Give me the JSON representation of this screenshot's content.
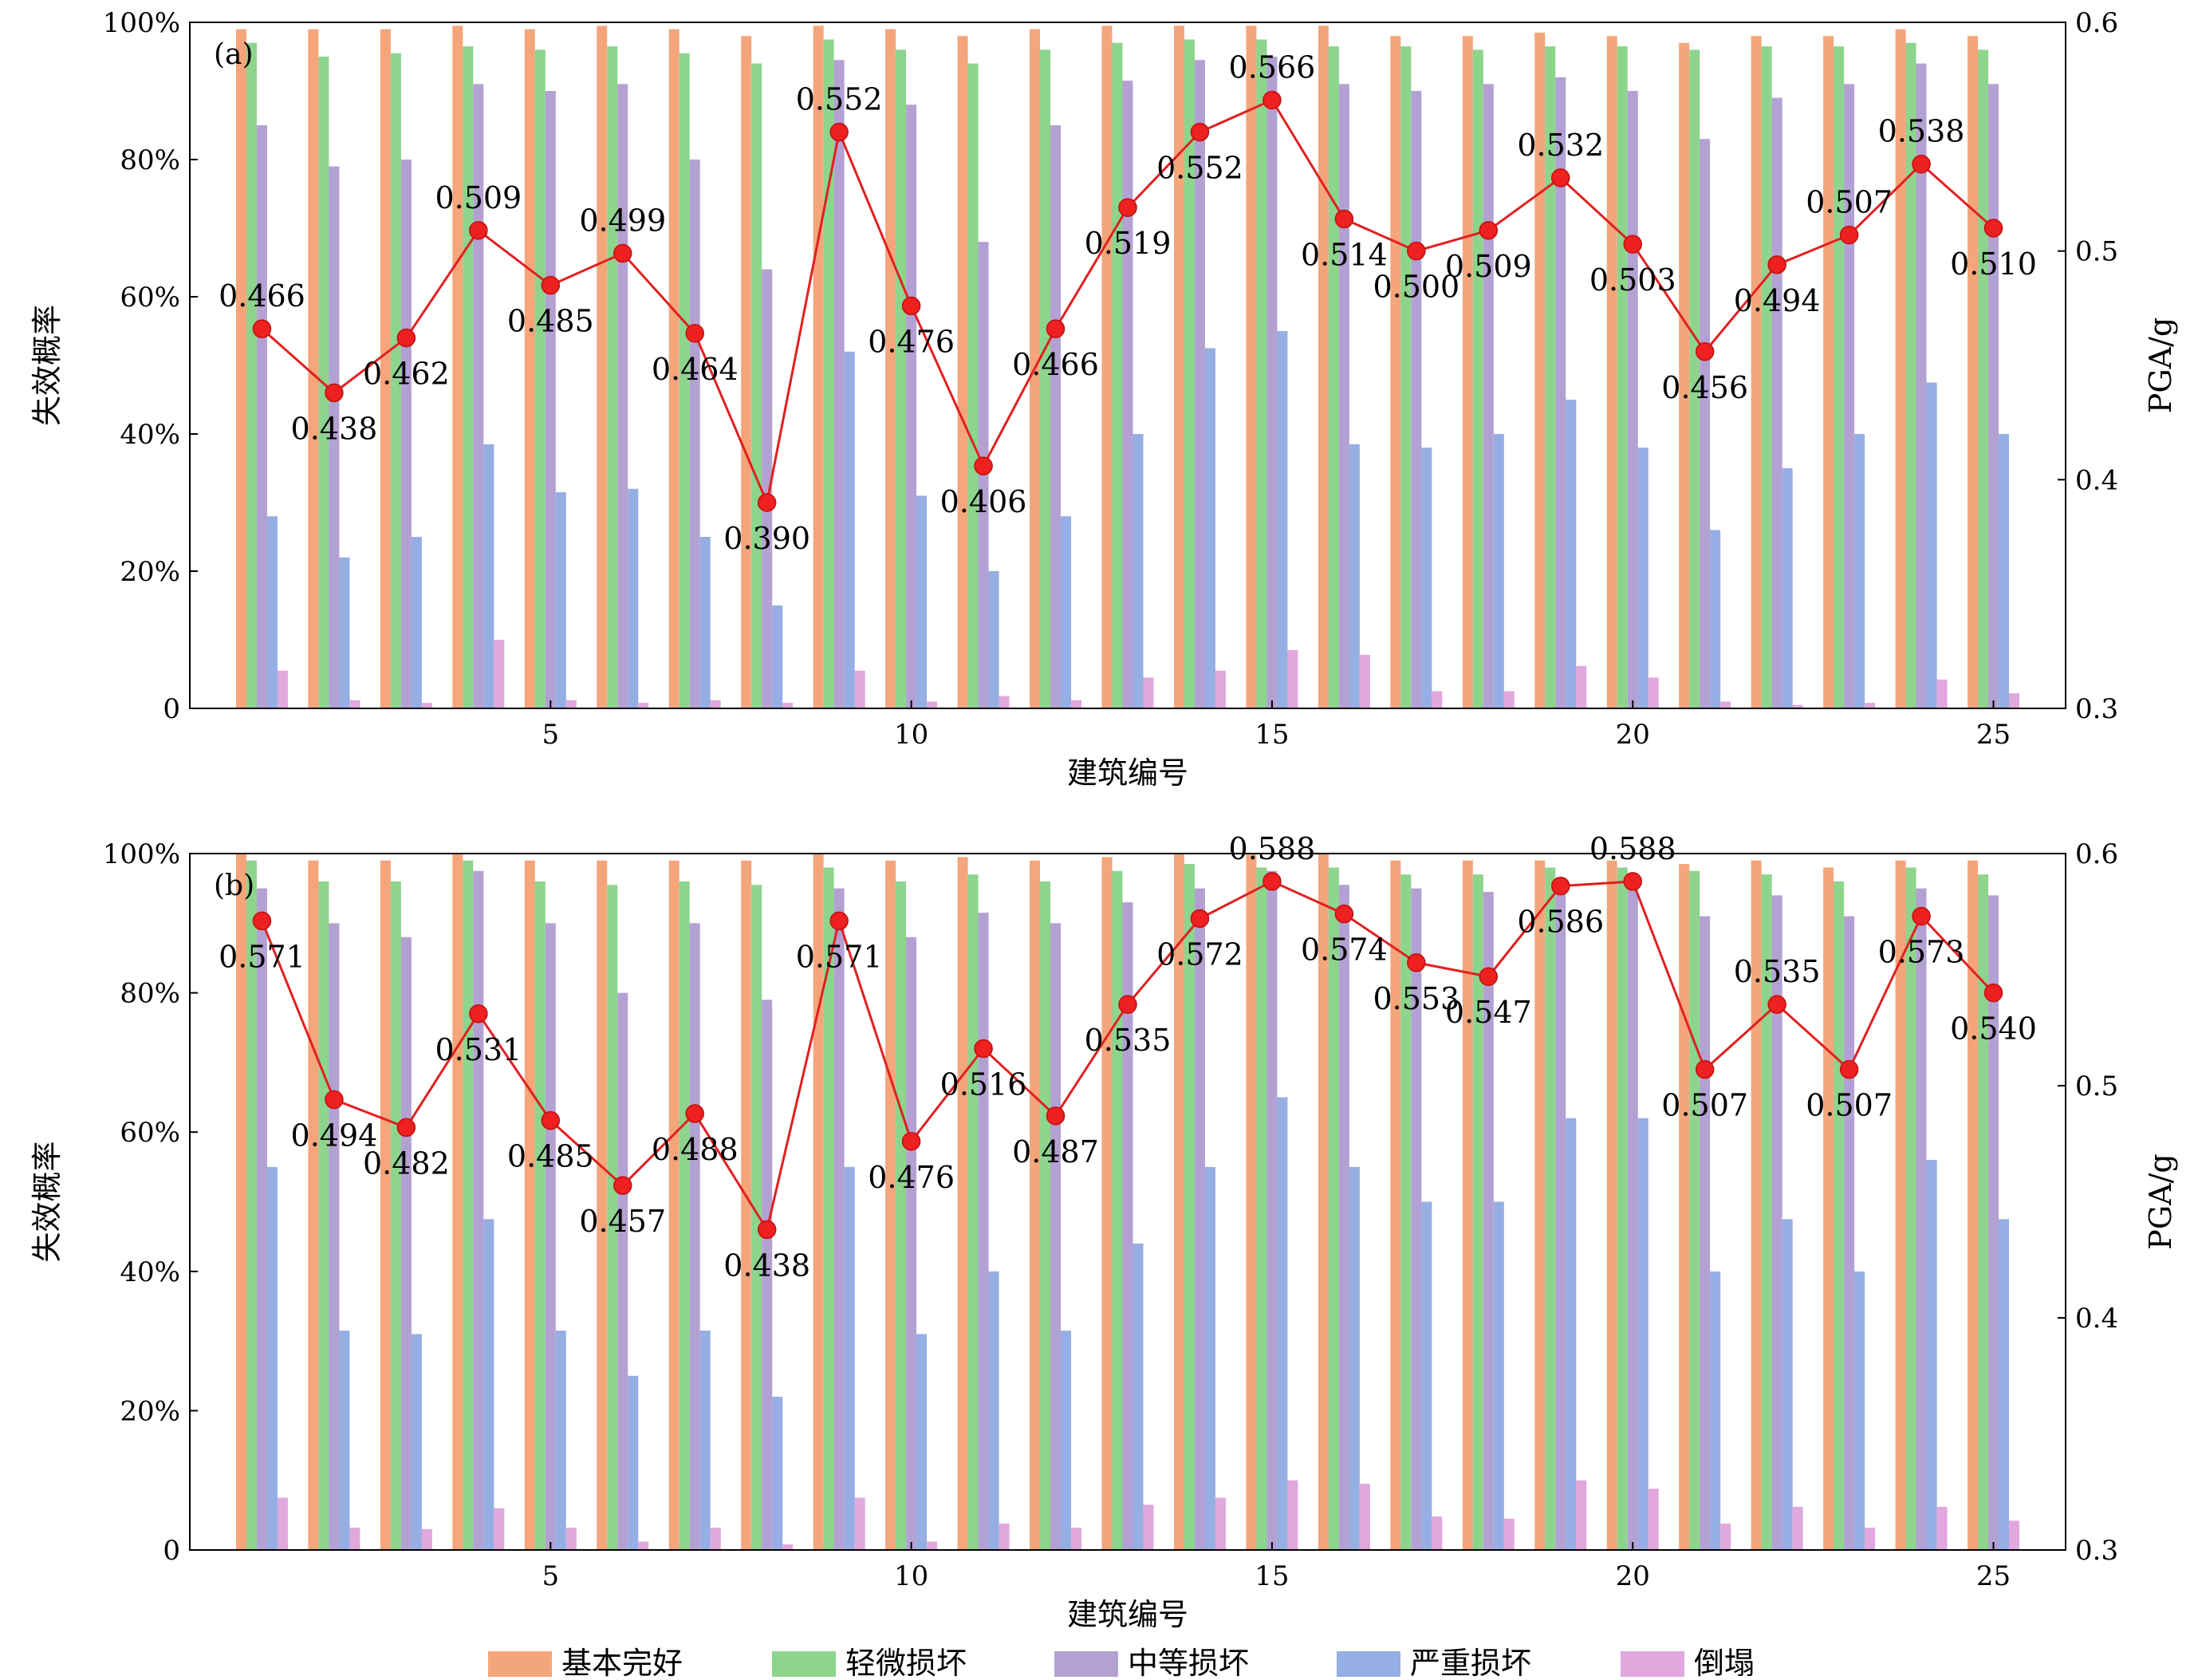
{
  "legend": {
    "position": "bottom-center",
    "items": [
      "基本完好",
      "轻微损坏",
      "中等损坏",
      "严重损坏",
      "倒塌"
    ]
  },
  "colors": {
    "基本完好": "#F4A57A",
    "轻微损坏": "#8DD48D",
    "中等损坏": "#B3A1D3",
    "严重损坏": "#95AEE3",
    "倒塌": "#E1A8DD",
    "pga_line": "#E02020",
    "pga_marker": "#EE2020"
  },
  "chart_data": [
    {
      "type": "bar",
      "panel_label": "(a)",
      "xlabel": "建筑编号",
      "ylabel": "失效概率",
      "y2label": "PGA/g",
      "ylim": [
        0,
        100
      ],
      "y2lim": [
        0.3,
        0.6
      ],
      "xlim": [
        0,
        26
      ],
      "yticks": [
        "0",
        "20%",
        "40%",
        "60%",
        "80%",
        "100%"
      ],
      "y2ticks": [
        "0.3",
        "0.4",
        "0.5",
        "0.6"
      ],
      "xticks": [
        "5",
        "10",
        "15",
        "20",
        "25"
      ],
      "x": [
        1,
        2,
        3,
        4,
        5,
        6,
        7,
        8,
        9,
        10,
        11,
        12,
        13,
        14,
        15,
        16,
        17,
        18,
        19,
        20,
        21,
        22,
        23,
        24,
        25
      ],
      "series": [
        {
          "name": "基本完好",
          "values": [
            99,
            99,
            99,
            99.5,
            99,
            99.5,
            99,
            98,
            99.5,
            99,
            98,
            99,
            99.5,
            99.5,
            99.5,
            99.5,
            98,
            98,
            98.5,
            98,
            97,
            98,
            98,
            99,
            98
          ]
        },
        {
          "name": "轻微损坏",
          "values": [
            97,
            95,
            95.5,
            96.5,
            96,
            96.5,
            95.5,
            94,
            97.5,
            96,
            94,
            96,
            97,
            97.5,
            97.5,
            96.5,
            96.5,
            96,
            96.5,
            96.5,
            96,
            96.5,
            96.5,
            97,
            96
          ]
        },
        {
          "name": "中等损坏",
          "values": [
            85,
            79,
            80,
            91,
            90,
            91,
            80,
            64,
            94.5,
            88,
            68,
            85,
            91.5,
            94.5,
            95,
            91,
            90,
            91,
            92,
            90,
            83,
            89,
            91,
            94,
            91
          ]
        },
        {
          "name": "严重损坏",
          "values": [
            28,
            22,
            25,
            38.5,
            31.5,
            32,
            25,
            15,
            52,
            31,
            20,
            28,
            40,
            52.5,
            55,
            38.5,
            38,
            40,
            45,
            38,
            26,
            35,
            40,
            47.5,
            40
          ]
        },
        {
          "name": "倒塌",
          "values": [
            5.5,
            1.2,
            0.8,
            10,
            1.2,
            0.8,
            1.2,
            0.8,
            5.5,
            1,
            1.8,
            1.2,
            4.5,
            5.5,
            8.5,
            7.8,
            2.5,
            2.5,
            6.2,
            4.5,
            1,
            0.5,
            0.8,
            4.2,
            2.2
          ]
        },
        {
          "name": "PGA",
          "axis": "right",
          "type": "line",
          "values": [
            0.466,
            0.438,
            0.462,
            0.509,
            0.485,
            0.499,
            0.464,
            0.39,
            0.552,
            0.476,
            0.406,
            0.466,
            0.519,
            0.552,
            0.566,
            0.514,
            0.5,
            0.509,
            0.532,
            0.503,
            0.456,
            0.494,
            0.507,
            0.538,
            0.51
          ],
          "labels": [
            "0.466",
            "0.438",
            "0.462",
            "0.509",
            "0.485",
            "0.499",
            "0.464",
            "0.390",
            "0.552",
            "0.476",
            "0.406",
            "0.466",
            "0.519",
            "0.552",
            "0.566",
            "0.514",
            "0.500",
            "0.509",
            "0.532",
            "0.503",
            "0.456",
            "0.494",
            "0.507",
            "0.538",
            "0.510"
          ],
          "label_side": [
            "above",
            "below",
            "below",
            "above",
            "below",
            "above",
            "below",
            "below",
            "above",
            "below",
            "below",
            "below",
            "below",
            "below",
            "above",
            "below",
            "below",
            "below",
            "above",
            "below",
            "below",
            "below",
            "above",
            "above",
            "below"
          ]
        }
      ]
    },
    {
      "type": "bar",
      "panel_label": "(b)",
      "xlabel": "建筑编号",
      "ylabel": "失效概率",
      "y2label": "PGA/g",
      "ylim": [
        0,
        100
      ],
      "y2lim": [
        0.3,
        0.6
      ],
      "xlim": [
        0,
        26
      ],
      "yticks": [
        "0",
        "20%",
        "40%",
        "60%",
        "80%",
        "100%"
      ],
      "y2ticks": [
        "0.3",
        "0.4",
        "0.5",
        "0.6"
      ],
      "xticks": [
        "5",
        "10",
        "15",
        "20",
        "25"
      ],
      "x": [
        1,
        2,
        3,
        4,
        5,
        6,
        7,
        8,
        9,
        10,
        11,
        12,
        13,
        14,
        15,
        16,
        17,
        18,
        19,
        20,
        21,
        22,
        23,
        24,
        25
      ],
      "series": [
        {
          "name": "基本完好",
          "values": [
            100,
            99,
            99,
            100,
            99,
            99,
            99,
            99,
            100,
            99,
            99.5,
            99,
            99.5,
            100,
            100,
            100,
            99,
            99,
            99,
            99,
            98.5,
            99,
            98,
            99,
            99
          ]
        },
        {
          "name": "轻微损坏",
          "values": [
            99,
            96,
            96,
            99,
            96,
            95.5,
            96,
            95.5,
            98,
            96,
            97,
            96,
            97.5,
            98.5,
            98,
            98,
            97,
            97,
            98,
            98,
            97.5,
            97,
            96,
            98,
            97
          ]
        },
        {
          "name": "中等损坏",
          "values": [
            95,
            90,
            88,
            97.5,
            90,
            80,
            90,
            79,
            95,
            88,
            91.5,
            90,
            93,
            95,
            97.5,
            95.5,
            95,
            94.5,
            95.5,
            97,
            91,
            94,
            91,
            95,
            94
          ]
        },
        {
          "name": "严重损坏",
          "values": [
            55,
            31.5,
            31,
            47.5,
            31.5,
            25,
            31.5,
            22,
            55,
            31,
            40,
            31.5,
            44,
            55,
            65,
            55,
            50,
            50,
            62,
            62,
            40,
            47.5,
            40,
            56,
            47.5
          ]
        },
        {
          "name": "倒塌",
          "values": [
            7.5,
            3.2,
            3,
            6,
            3.2,
            1.2,
            3.2,
            0.8,
            7.5,
            1.2,
            3.8,
            3.2,
            6.5,
            7.5,
            10,
            9.5,
            4.8,
            4.5,
            10,
            8.8,
            3.8,
            6.2,
            3.2,
            6.2,
            4.2
          ]
        },
        {
          "name": "PGA",
          "axis": "right",
          "type": "line",
          "values": [
            0.571,
            0.494,
            0.482,
            0.531,
            0.485,
            0.457,
            0.488,
            0.438,
            0.571,
            0.476,
            0.516,
            0.487,
            0.535,
            0.572,
            0.588,
            0.574,
            0.553,
            0.547,
            0.586,
            0.588,
            0.507,
            0.535,
            0.507,
            0.573,
            0.54
          ],
          "labels": [
            "0.571",
            "0.494",
            "0.482",
            "0.531",
            "0.485",
            "0.457",
            "0.488",
            "0.438",
            "0.571",
            "0.476",
            "0.516",
            "0.487",
            "0.535",
            "0.572",
            "0.588",
            "0.574",
            "0.553",
            "0.547",
            "0.586",
            "0.588",
            "0.507",
            "0.535",
            "0.507",
            "0.573",
            "0.540"
          ],
          "label_side": [
            "below",
            "below",
            "below",
            "below",
            "below",
            "below",
            "below",
            "below",
            "below",
            "below",
            "below",
            "below",
            "below",
            "below",
            "above",
            "below",
            "below",
            "below",
            "below",
            "above",
            "below",
            "above",
            "below",
            "below",
            "below"
          ]
        }
      ]
    }
  ]
}
